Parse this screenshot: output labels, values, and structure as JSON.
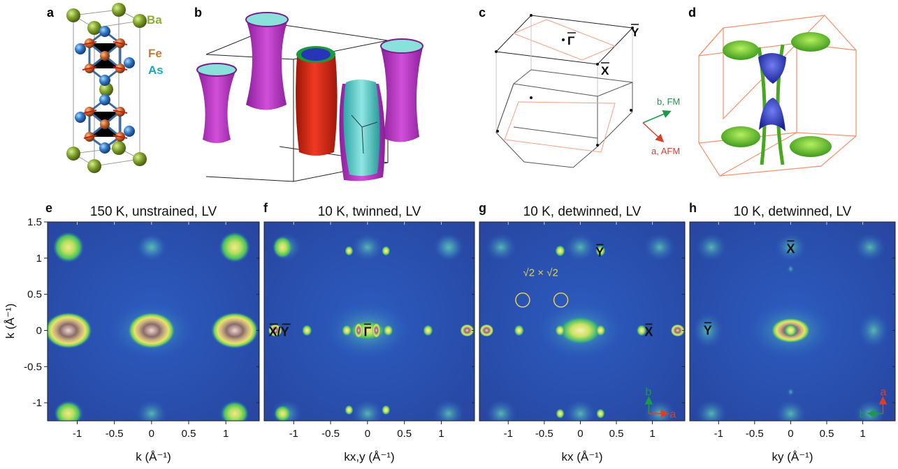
{
  "panel_letters": [
    "a",
    "b",
    "c",
    "d",
    "e",
    "f",
    "g",
    "h"
  ],
  "panel_a": {
    "legend": [
      {
        "label": "Ba",
        "color": "#8cae33"
      },
      {
        "label": "Fe",
        "color": "#c97a35"
      },
      {
        "label": "As",
        "color": "#1fa6bf"
      }
    ]
  },
  "panel_c": {
    "points": {
      "gamma": "Γ",
      "y": "Y",
      "x": "X"
    },
    "axes": {
      "b_label": "b, FM",
      "a_label": "a, AFM",
      "b_color": "#1a9a4a",
      "a_color": "#d8402c"
    }
  },
  "bz_edge_color": "#f4a080",
  "chart_data": [
    {
      "type": "heatmap",
      "panel": "e",
      "title": "150 K, unstrained, LV",
      "xlabel": "k (Å⁻¹)",
      "ylabel": "k (Å⁻¹)",
      "xlim": [
        -1.4,
        1.45
      ],
      "ylim": [
        -1.25,
        1.5
      ],
      "xticks": [
        "-1",
        "-0.5",
        "0",
        "0.5",
        "1"
      ],
      "yticks": [
        "1.5",
        "1",
        "0.5",
        "0",
        "-0.5",
        "-1"
      ],
      "labels": []
    },
    {
      "type": "heatmap",
      "panel": "f",
      "title": "10 K, twinned, LV",
      "xlabel": "kx,y (Å⁻¹)",
      "xlim": [
        -1.4,
        1.45
      ],
      "ylim": [
        -1.25,
        1.5
      ],
      "xticks": [
        "-1",
        "-0.5",
        "0",
        "0.5",
        "1"
      ],
      "labels": [
        "X/Y",
        "Γ"
      ]
    },
    {
      "type": "heatmap",
      "panel": "g",
      "title": "10 K, detwinned, LV",
      "xlabel": "kx (Å⁻¹)",
      "xlim": [
        -1.4,
        1.45
      ],
      "ylim": [
        -1.25,
        1.5
      ],
      "xticks": [
        "-1",
        "-0.5",
        "0",
        "0.5",
        "1"
      ],
      "labels": [
        "Y",
        "X"
      ],
      "annotation": "√2 × √2",
      "axes": {
        "b": "b",
        "a": "a"
      }
    },
    {
      "type": "heatmap",
      "panel": "h",
      "title": "10 K, detwinned, LV",
      "xlabel": "ky (Å⁻¹)",
      "xlim": [
        -1.4,
        1.45
      ],
      "ylim": [
        -1.25,
        1.5
      ],
      "xticks": [
        "-1",
        "-0.5",
        "0",
        "0.5",
        "1"
      ],
      "labels": [
        "X",
        "Y"
      ],
      "axes": {
        "a": "a",
        "b": "b"
      }
    }
  ]
}
